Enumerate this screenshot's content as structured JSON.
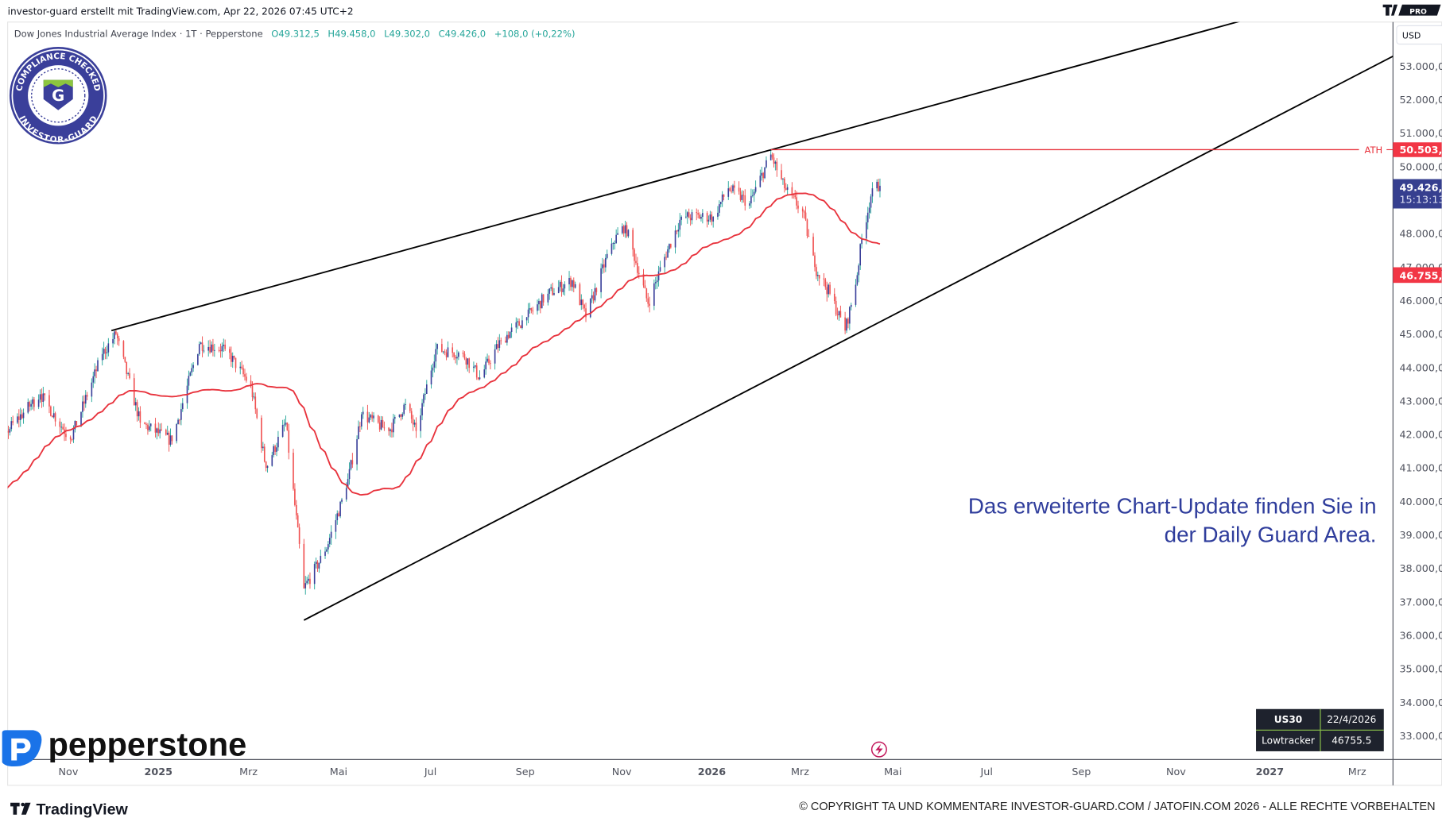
{
  "header": {
    "attribution": "investor-guard erstellt mit TradingView.com, Apr 22, 2026 07:45 UTC+2",
    "tv_pro_badge": "PRO"
  },
  "legend": {
    "symbol": "Dow Jones Industrial Average Index · 1T · Pepperstone",
    "open": "O49.312,5",
    "high": "H49.458,0",
    "low": "L49.302,0",
    "close": "C49.426,0",
    "change": "+108,0 (+0,22%)",
    "color": "#26a69a"
  },
  "seal": {
    "text_top": "COMPLIANCE CHECKED",
    "text_bottom": "INVESTOR-GUARD",
    "letter": "G"
  },
  "price_axis": {
    "currency": "USD",
    "labels": [
      "53.000,0",
      "52.000,0",
      "51.000,0",
      "50.000,0",
      "48.000,0",
      "47.000,0",
      "46.000,0",
      "45.000,0",
      "44.000,0",
      "43.000,0",
      "42.000,0",
      "41.000,0",
      "40.000,0",
      "39.000,0",
      "38.000,0",
      "37.000,0",
      "36.000,0",
      "35.000,0",
      "34.000,0",
      "33.000,0"
    ],
    "ath_tag": "50.503,9",
    "current_tag": "49.426,0",
    "countdown": "15:13:13",
    "ma_tag": "46.755,5"
  },
  "time_axis": {
    "labels": [
      {
        "text": "Nov",
        "bold": false
      },
      {
        "text": "2025",
        "bold": true
      },
      {
        "text": "Mrz",
        "bold": false
      },
      {
        "text": "Mai",
        "bold": false
      },
      {
        "text": "Jul",
        "bold": false
      },
      {
        "text": "Sep",
        "bold": false
      },
      {
        "text": "Nov",
        "bold": false
      },
      {
        "text": "2026",
        "bold": true
      },
      {
        "text": "Mrz",
        "bold": false
      },
      {
        "text": "Mai",
        "bold": false
      },
      {
        "text": "Jul",
        "bold": false
      },
      {
        "text": "Sep",
        "bold": false
      },
      {
        "text": "Nov",
        "bold": false
      },
      {
        "text": "2027",
        "bold": true
      },
      {
        "text": "Mrz",
        "bold": false
      }
    ]
  },
  "annotation": {
    "line1": "Das erweiterte Chart-Update finden Sie in",
    "line2": "der Daily Guard Area.",
    "color": "#2f3d9c"
  },
  "info_table": {
    "rows": [
      [
        "US30",
        "22/4/2026"
      ],
      [
        "Lowtracker",
        "46755.5"
      ]
    ]
  },
  "branding": {
    "broker": "pepperstone",
    "platform": "TradingView"
  },
  "footer": {
    "copyright": "© COPYRIGHT TA UND KOMMENTARE INVESTOR-GUARD.COM / JATOFIN.COM 2026 - ALLE RECHTE VORBEHALTEN"
  },
  "chart_data": {
    "type": "candlestick",
    "title": "Dow Jones Industrial Average Index · 1T · Pepperstone",
    "currency": "USD",
    "ylim": [
      32500,
      53500
    ],
    "xlim": [
      "2024-09-20",
      "2027-03-31"
    ],
    "colors": {
      "up": "#3a3f9a",
      "down": "#f05050",
      "up_wick": "#26a69a",
      "ma": "#e8323c",
      "trendline": "#000000",
      "ath": "#e8323c"
    },
    "approx_closes": [
      [
        "2024-09-23",
        42100
      ],
      [
        "2024-10-15",
        43200
      ],
      [
        "2024-11-04",
        41850
      ],
      [
        "2024-11-25",
        44400
      ],
      [
        "2024-12-04",
        45000
      ],
      [
        "2024-12-20",
        42350
      ],
      [
        "2025-01-10",
        41800
      ],
      [
        "2025-01-28",
        44700
      ],
      [
        "2025-02-14",
        44550
      ],
      [
        "2025-03-03",
        43450
      ],
      [
        "2025-03-13",
        41000
      ],
      [
        "2025-03-26",
        42350
      ],
      [
        "2025-04-07",
        37400
      ],
      [
        "2025-04-21",
        38500
      ],
      [
        "2025-05-05",
        40400
      ],
      [
        "2025-05-15",
        42600
      ],
      [
        "2025-06-02",
        42100
      ],
      [
        "2025-06-13",
        42900
      ],
      [
        "2025-06-20",
        42100
      ],
      [
        "2025-07-03",
        44550
      ],
      [
        "2025-07-21",
        44400
      ],
      [
        "2025-08-01",
        43700
      ],
      [
        "2025-08-15",
        44800
      ],
      [
        "2025-09-01",
        45500
      ],
      [
        "2025-09-15",
        46200
      ],
      [
        "2025-10-01",
        46600
      ],
      [
        "2025-10-10",
        45500
      ],
      [
        "2025-10-27",
        47700
      ],
      [
        "2025-11-05",
        48250
      ],
      [
        "2025-11-20",
        45900
      ],
      [
        "2025-12-01",
        47300
      ],
      [
        "2025-12-12",
        48500
      ],
      [
        "2026-01-02",
        48500
      ],
      [
        "2026-01-12",
        49350
      ],
      [
        "2026-01-26",
        48900
      ],
      [
        "2026-02-09",
        50360
      ],
      [
        "2026-02-18",
        49350
      ],
      [
        "2026-03-02",
        48660
      ],
      [
        "2026-03-10",
        47000
      ],
      [
        "2026-03-20",
        46200
      ],
      [
        "2026-03-30",
        45100
      ],
      [
        "2026-04-06",
        46470
      ],
      [
        "2026-04-10",
        47850
      ],
      [
        "2026-04-17",
        49350
      ],
      [
        "2026-04-22",
        49426
      ]
    ],
    "all_time_high": {
      "label": "ATH",
      "value": 50503.9
    },
    "moving_average": {
      "last_value": 46755.5
    },
    "last_close": 49426.0,
    "trendlines": [
      {
        "from": [
          "2024-12-01",
          45100
        ],
        "to": [
          "2026-02-09",
          50500
        ]
      },
      {
        "from": [
          "2025-04-07",
          36450
        ],
        "to": [
          "2026-03-27",
          44750
        ]
      }
    ]
  }
}
